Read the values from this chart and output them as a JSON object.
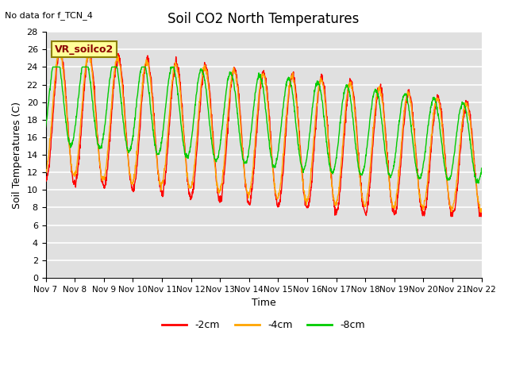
{
  "title": "Soil CO2 North Temperatures",
  "no_data_text": "No data for f_TCN_4",
  "xlabel": "Time",
  "ylabel": "Soil Temperatures (C)",
  "ylim": [
    0,
    28
  ],
  "yticks": [
    0,
    2,
    4,
    6,
    8,
    10,
    12,
    14,
    16,
    18,
    20,
    22,
    24,
    26,
    28
  ],
  "xtick_labels": [
    "Nov 7",
    "Nov 8",
    "Nov 9",
    "Nov 10",
    "Nov 11",
    "Nov 12",
    "Nov 13",
    "Nov 14",
    "Nov 15",
    "Nov 16",
    "Nov 17",
    "Nov 18",
    "Nov 19",
    "Nov 20",
    "Nov 21",
    "Nov 22"
  ],
  "legend_box_text": "VR_soilco2",
  "legend_box_color": "#FFFF99",
  "legend_box_border": "#8B8000",
  "line_colors": {
    "2cm": "#FF0000",
    "4cm": "#FFA500",
    "8cm": "#00CC00"
  },
  "legend_labels": [
    "-2cm",
    "-4cm",
    "-8cm"
  ],
  "background_color": "#E0E0E0",
  "grid_color": "#FFFFFF",
  "n_points": 1600
}
